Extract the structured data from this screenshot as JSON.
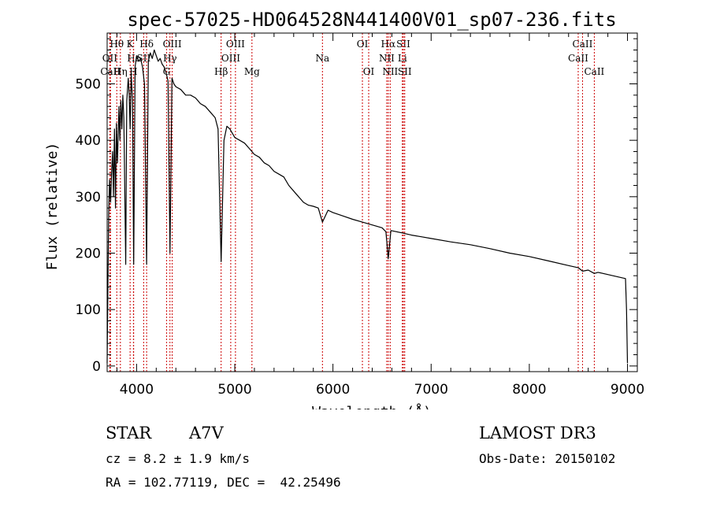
{
  "chart_data": {
    "type": "line",
    "title": "spec-57025-HD064528N441400V01_sp07-236.fits",
    "xlabel": "Wavelength (Å)",
    "ylabel": "Flux (relative)",
    "xlim": [
      3700,
      9100
    ],
    "ylim": [
      -10,
      590
    ],
    "x_ticks": [
      4000,
      5000,
      6000,
      7000,
      8000,
      9000
    ],
    "x_tick_labels": [
      "4000",
      "5000",
      "6000",
      "7000",
      "8000",
      "9000"
    ],
    "y_ticks": [
      0,
      100,
      200,
      300,
      400,
      500
    ],
    "y_tick_labels": [
      "0",
      "100",
      "200",
      "300",
      "400",
      "500"
    ],
    "series": [
      {
        "name": "Flux",
        "color": "#000000",
        "points": [
          [
            3700,
            5
          ],
          [
            3708,
            150
          ],
          [
            3716,
            270
          ],
          [
            3725,
            330
          ],
          [
            3735,
            290
          ],
          [
            3745,
            340
          ],
          [
            3755,
            380
          ],
          [
            3765,
            300
          ],
          [
            3775,
            420
          ],
          [
            3785,
            280
          ],
          [
            3795,
            430
          ],
          [
            3805,
            360
          ],
          [
            3820,
            460
          ],
          [
            3830,
            400
          ],
          [
            3840,
            470
          ],
          [
            3850,
            420
          ],
          [
            3860,
            480
          ],
          [
            3870,
            440
          ],
          [
            3889,
            180
          ],
          [
            3900,
            470
          ],
          [
            3915,
            510
          ],
          [
            3925,
            480
          ],
          [
            3934,
            420
          ],
          [
            3945,
            520
          ],
          [
            3958,
            470
          ],
          [
            3970,
            180
          ],
          [
            3985,
            530
          ],
          [
            4000,
            550
          ],
          [
            4020,
            540
          ],
          [
            4040,
            545
          ],
          [
            4060,
            530
          ],
          [
            4080,
            500
          ],
          [
            4102,
            180
          ],
          [
            4120,
            540
          ],
          [
            4140,
            555
          ],
          [
            4160,
            545
          ],
          [
            4180,
            560
          ],
          [
            4200,
            550
          ],
          [
            4220,
            540
          ],
          [
            4240,
            545
          ],
          [
            4260,
            535
          ],
          [
            4280,
            530
          ],
          [
            4300,
            520
          ],
          [
            4320,
            505
          ],
          [
            4340,
            200
          ],
          [
            4360,
            510
          ],
          [
            4380,
            500
          ],
          [
            4400,
            495
          ],
          [
            4450,
            490
          ],
          [
            4500,
            480
          ],
          [
            4550,
            480
          ],
          [
            4600,
            475
          ],
          [
            4650,
            465
          ],
          [
            4700,
            460
          ],
          [
            4750,
            450
          ],
          [
            4800,
            440
          ],
          [
            4830,
            420
          ],
          [
            4861,
            185
          ],
          [
            4890,
            400
          ],
          [
            4920,
            425
          ],
          [
            4950,
            420
          ],
          [
            5000,
            405
          ],
          [
            5050,
            400
          ],
          [
            5100,
            395
          ],
          [
            5150,
            385
          ],
          [
            5200,
            375
          ],
          [
            5250,
            370
          ],
          [
            5300,
            360
          ],
          [
            5350,
            355
          ],
          [
            5400,
            345
          ],
          [
            5450,
            340
          ],
          [
            5500,
            335
          ],
          [
            5550,
            320
          ],
          [
            5600,
            310
          ],
          [
            5650,
            300
          ],
          [
            5700,
            290
          ],
          [
            5750,
            285
          ],
          [
            5800,
            283
          ],
          [
            5850,
            280
          ],
          [
            5893,
            255
          ],
          [
            5950,
            276
          ],
          [
            6000,
            272
          ],
          [
            6100,
            266
          ],
          [
            6200,
            260
          ],
          [
            6300,
            255
          ],
          [
            6400,
            250
          ],
          [
            6500,
            245
          ],
          [
            6540,
            238
          ],
          [
            6563,
            190
          ],
          [
            6590,
            240
          ],
          [
            6700,
            236
          ],
          [
            6800,
            232
          ],
          [
            6900,
            229
          ],
          [
            7000,
            226
          ],
          [
            7200,
            220
          ],
          [
            7400,
            215
          ],
          [
            7600,
            208
          ],
          [
            7800,
            200
          ],
          [
            8000,
            194
          ],
          [
            8200,
            186
          ],
          [
            8400,
            178
          ],
          [
            8500,
            174
          ],
          [
            8542,
            168
          ],
          [
            8600,
            170
          ],
          [
            8662,
            164
          ],
          [
            8700,
            166
          ],
          [
            8800,
            162
          ],
          [
            8900,
            158
          ],
          [
            8980,
            155
          ],
          [
            8990,
            100
          ],
          [
            9000,
            5
          ]
        ]
      }
    ],
    "spectral_lines": [
      {
        "label": "CaII",
        "wavelength": 3734,
        "row": 3
      },
      {
        "label": "OII",
        "wavelength": 3727,
        "row": 2
      },
      {
        "label": "Hθ",
        "wavelength": 3798,
        "row": 1
      },
      {
        "label": "Hη",
        "wavelength": 3835,
        "row": 3
      },
      {
        "label": "K",
        "wavelength": 3934,
        "row": 1
      },
      {
        "label": "Hε",
        "wavelength": 3970,
        "row": 2
      },
      {
        "label": "Hδ",
        "wavelength": 4102,
        "row": 1
      },
      {
        "label": "SII",
        "wavelength": 4072,
        "row": 2
      },
      {
        "label": "H",
        "wavelength": 3968,
        "row": 3
      },
      {
        "label": "OIII",
        "wavelength": 4363,
        "row": 1
      },
      {
        "label": "Hγ",
        "wavelength": 4340,
        "row": 2
      },
      {
        "label": "G",
        "wavelength": 4305,
        "row": 3
      },
      {
        "label": "OIII",
        "wavelength": 5007,
        "row": 1
      },
      {
        "label": "OIII",
        "wavelength": 4959,
        "row": 2
      },
      {
        "label": "Hβ",
        "wavelength": 4861,
        "row": 3
      },
      {
        "label": "Mg",
        "wavelength": 5175,
        "row": 3
      },
      {
        "label": "Na",
        "wavelength": 5893,
        "row": 2
      },
      {
        "label": "OI",
        "wavelength": 6300,
        "row": 1
      },
      {
        "label": "OI",
        "wavelength": 6364,
        "row": 3
      },
      {
        "label": "Hα",
        "wavelength": 6563,
        "row": 1
      },
      {
        "label": "NII",
        "wavelength": 6548,
        "row": 2
      },
      {
        "label": "NII",
        "wavelength": 6583,
        "row": 3
      },
      {
        "label": "SII",
        "wavelength": 6717,
        "row": 1
      },
      {
        "label": "Li",
        "wavelength": 6707,
        "row": 2
      },
      {
        "label": "SII",
        "wavelength": 6731,
        "row": 3
      },
      {
        "label": "CaII",
        "wavelength": 8542,
        "row": 1
      },
      {
        "label": "CaII",
        "wavelength": 8498,
        "row": 2
      },
      {
        "label": "CaII",
        "wavelength": 8662,
        "row": 3
      }
    ]
  },
  "info": {
    "object_class": "STAR",
    "subclass": "A7V",
    "survey": "LAMOST DR3",
    "redshift": "cz = 8.2 ± 1.9 km/s",
    "obs_date": "Obs-Date: 20150102",
    "coords": "RA = 102.77119, DEC =  42.25496"
  },
  "colors": {
    "spectrum": "#000000",
    "line_marker": "#cc0000",
    "axes": "#000000"
  }
}
